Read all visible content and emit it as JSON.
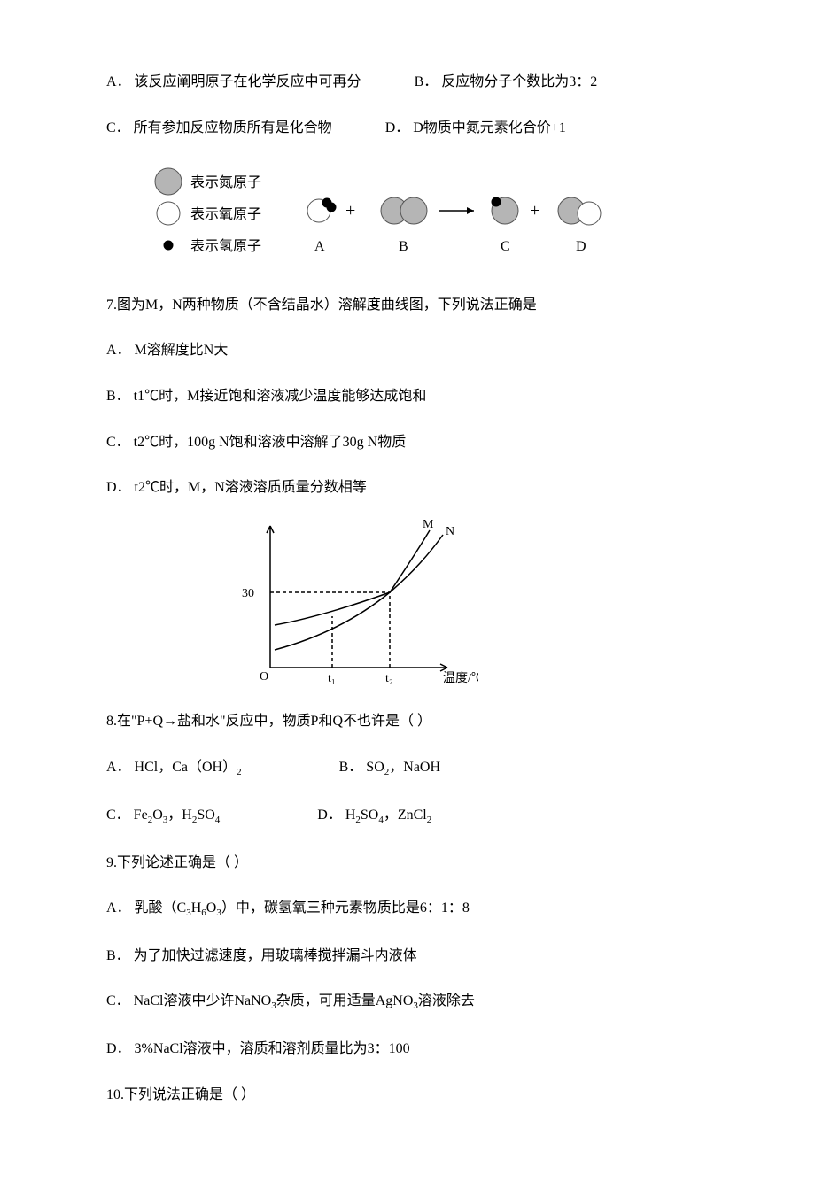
{
  "q6": {
    "optA": "A．  该反应阐明原子在化学反应中可再分",
    "optB": "B．  反应物分子个数比为3：2",
    "optC": "C．  所有参加反应物质所有是化合物",
    "optD": "D．  D物质中氮元素化合价+1",
    "diagram": {
      "legend": {
        "n_label": "表示氮原子",
        "o_label": "表示氧原子",
        "h_label": "表示氢原子"
      },
      "labels": [
        "A",
        "B",
        "C",
        "D"
      ],
      "plus": "+",
      "colors": {
        "n_fill": "#b5b5b5",
        "n_stroke": "#555555",
        "o_fill": "#ffffff",
        "o_stroke": "#555555",
        "h_fill": "#000000",
        "h_stroke": "#000000",
        "arrow": "#000000",
        "text": "#000000"
      },
      "radii": {
        "n": 15,
        "o": 13,
        "h": 5
      }
    }
  },
  "q7": {
    "stem": "7.图为M，N两种物质（不含结晶水）溶解度曲线图，下列说法正确是",
    "optA": "A．  M溶解度比N大",
    "optB": "B．  t1℃时，M接近饱和溶液减少温度能够达成饱和",
    "optC": "C．  t2℃时，100g N饱和溶液中溶解了30g N物质",
    "optD": "D．  t2℃时，M，N溶液溶质质量分数相等",
    "graph": {
      "xlabel": "温度/℃",
      "ylabel_tick": "30",
      "origin": "O",
      "t1": "t₁",
      "t2": "t₂",
      "M": "M",
      "N": "N",
      "colors": {
        "axis": "#000000",
        "curve": "#000000",
        "dash": "#000000",
        "bg": "#ffffff"
      },
      "linewidth": 1.5,
      "fontsize": 14
    }
  },
  "q8": {
    "stem": "8.在\"P+Q→盐和水\"反应中，物质P和Q不也许是（  ）",
    "optA_pre": "A．  HCl，Ca（OH）",
    "optA_sub": "2",
    "optB_pre": "B．  SO",
    "optB_sub1": "2",
    "optB_mid": "，NaOH",
    "optC_pre": "C．  Fe",
    "optC_s1": "2",
    "optC_m1": "O",
    "optC_s2": "3",
    "optC_m2": "，H",
    "optC_s3": "2",
    "optC_m3": "SO",
    "optC_s4": "4",
    "optD_pre": "D．  H",
    "optD_s1": "2",
    "optD_m1": "SO",
    "optD_s2": "4",
    "optD_m2": "，ZnCl",
    "optD_s3": "2"
  },
  "q9": {
    "stem": "9.下列论述正确是（  ）",
    "optA_pre": "A．  乳酸（C",
    "optA_s1": "3",
    "optA_m1": "H",
    "optA_s2": "6",
    "optA_m2": "O",
    "optA_s3": "3",
    "optA_post": "）中，碳氢氧三种元素物质比是6：1：8",
    "optB": "B．  为了加快过滤速度，用玻璃棒搅拌漏斗内液体",
    "optC_pre": "C．  NaCl溶液中少许NaNO",
    "optC_s1": "3",
    "optC_m1": "杂质，可用适量AgNO",
    "optC_s2": "3",
    "optC_post": "溶液除去",
    "optD": "D．  3%NaCl溶液中，溶质和溶剂质量比为3：100"
  },
  "q10": {
    "stem": "10.下列说法正确是（  ）"
  }
}
